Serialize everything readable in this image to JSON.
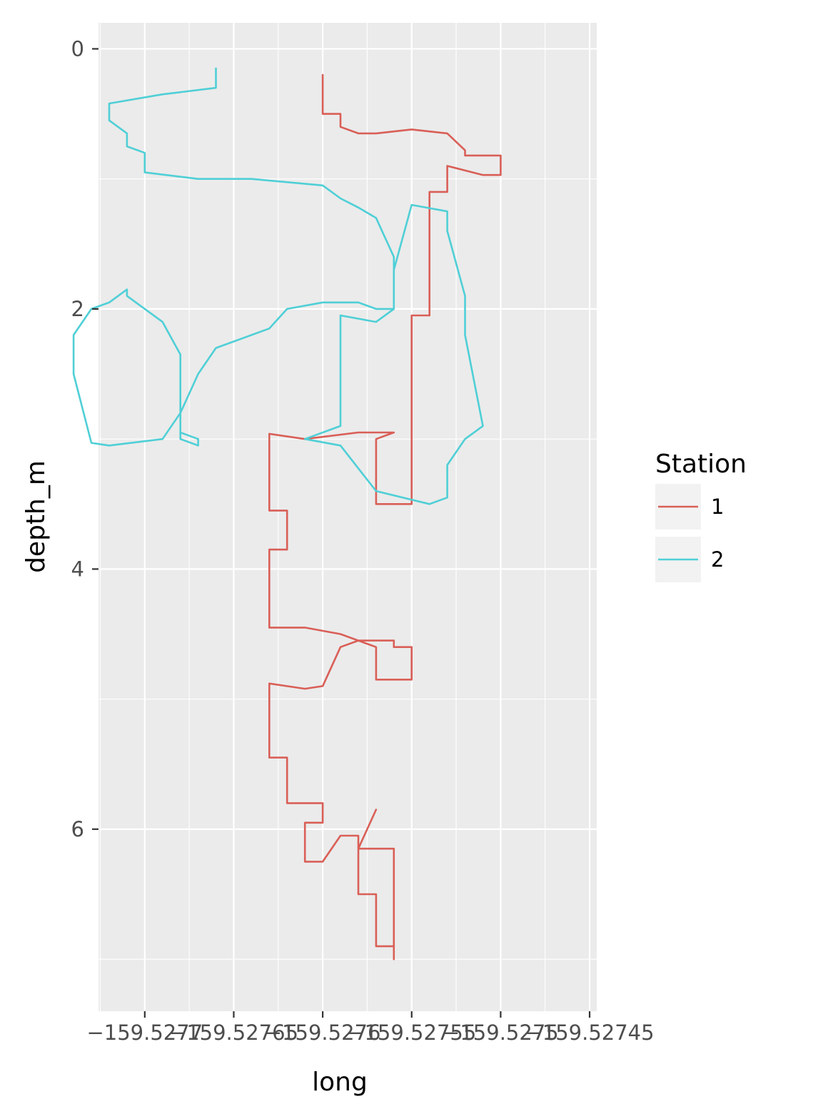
{
  "chart_data": {
    "type": "line",
    "xlabel": "long",
    "ylabel": "depth_m",
    "x_ticks": [
      {
        "value": -159.5277,
        "label": "−159.5277"
      },
      {
        "value": -159.52765,
        "label": "−159.52765"
      },
      {
        "value": -159.5276,
        "label": "−159.5276"
      },
      {
        "value": -159.52755,
        "label": "−159.52755"
      },
      {
        "value": -159.5275,
        "label": "−159.5275"
      },
      {
        "value": -159.52745,
        "label": "−159.52745"
      }
    ],
    "y_ticks": [
      {
        "value": 0,
        "label": "0"
      },
      {
        "value": 2,
        "label": "2"
      },
      {
        "value": 4,
        "label": "4"
      },
      {
        "value": 6,
        "label": "6"
      }
    ],
    "xlim": [
      -159.527726,
      -159.527446
    ],
    "ylim": [
      7.4,
      -0.2
    ],
    "y_reversed": true,
    "grid": true,
    "legend": {
      "title": "Station",
      "position": "right"
    },
    "series": [
      {
        "name": "1",
        "color": "#d95f57",
        "x": [
          -159.5276,
          -159.5276,
          -159.52759,
          -159.52759,
          -159.52758,
          -159.52757,
          -159.52755,
          -159.52753,
          -159.52752,
          -159.52752,
          -159.5275,
          -159.5275,
          -159.52751,
          -159.52753,
          -159.52753,
          -159.52754,
          -159.52754,
          -159.52755,
          -159.52755,
          -159.52755,
          -159.52757,
          -159.52757,
          -159.52756,
          -159.52758,
          -159.52761,
          -159.52763,
          -159.52763,
          -159.52762,
          -159.52762,
          -159.52763,
          -159.52763,
          -159.52761,
          -159.52759,
          -159.52757,
          -159.52757,
          -159.52755,
          -159.52755,
          -159.52756,
          -159.52756,
          -159.52758,
          -159.52759,
          -159.5276,
          -159.52761,
          -159.52763,
          -159.52763,
          -159.52762,
          -159.52762,
          -159.5276,
          -159.5276,
          -159.52761,
          -159.52761,
          -159.5276,
          -159.52759,
          -159.52758,
          -159.52758,
          -159.52757,
          -159.52757,
          -159.52756,
          -159.52756,
          -159.52756,
          -159.52758,
          -159.52757,
          -159.52757
        ],
        "y": [
          0.2,
          0.5,
          0.5,
          0.6,
          0.65,
          0.65,
          0.62,
          0.65,
          0.78,
          0.82,
          0.82,
          0.97,
          0.97,
          0.9,
          1.1,
          1.1,
          2.05,
          2.05,
          2.05,
          3.5,
          3.5,
          3.0,
          2.95,
          2.95,
          3.0,
          2.96,
          3.55,
          3.55,
          3.85,
          3.85,
          4.45,
          4.45,
          4.5,
          4.6,
          4.85,
          4.85,
          4.6,
          4.6,
          4.55,
          4.55,
          4.6,
          4.9,
          4.92,
          4.88,
          5.45,
          5.45,
          5.8,
          5.8,
          5.95,
          5.95,
          6.25,
          6.25,
          6.05,
          6.05,
          6.5,
          6.5,
          6.9,
          6.9,
          7.0,
          6.15,
          6.15,
          5.85,
          5.85
        ]
      },
      {
        "name": "2",
        "color": "#4fcfd6",
        "x": [
          -159.52766,
          -159.52766,
          -159.52769,
          -159.52772,
          -159.52772,
          -159.52771,
          -159.52771,
          -159.5277,
          -159.5277,
          -159.52767,
          -159.52764,
          -159.5276,
          -159.52759,
          -159.52758,
          -159.52757,
          -159.52756,
          -159.52756,
          -159.52757,
          -159.52759,
          -159.52759,
          -159.52761,
          -159.52759,
          -159.52757,
          -159.52754,
          -159.52753,
          -159.52753,
          -159.52752,
          -159.52751,
          -159.52752,
          -159.52752,
          -159.52753,
          -159.52753,
          -159.52755,
          -159.52756,
          -159.52756,
          -159.52757,
          -159.52758,
          -159.5276,
          -159.52762,
          -159.52763,
          -159.52766,
          -159.52767,
          -159.52768,
          -159.52769,
          -159.52772,
          -159.52773,
          -159.52774,
          -159.52774,
          -159.52773,
          -159.52772,
          -159.52771,
          -159.52771,
          -159.52769,
          -159.52768,
          -159.52768,
          -159.52767,
          -159.52767,
          -159.52768,
          -159.52767
        ],
        "y": [
          0.15,
          0.3,
          0.35,
          0.42,
          0.55,
          0.65,
          0.75,
          0.8,
          0.95,
          1.0,
          1.0,
          1.05,
          1.15,
          1.22,
          1.3,
          1.6,
          2.0,
          2.1,
          2.05,
          2.9,
          3.0,
          3.05,
          3.4,
          3.5,
          3.45,
          3.2,
          3.0,
          2.9,
          2.2,
          1.9,
          1.4,
          1.25,
          1.2,
          1.7,
          2.0,
          2.0,
          1.95,
          1.95,
          2.0,
          2.15,
          2.3,
          2.5,
          2.8,
          3.0,
          3.05,
          3.03,
          2.5,
          2.2,
          2.0,
          1.95,
          1.85,
          1.9,
          2.1,
          2.35,
          3.0,
          3.05,
          3.0,
          2.95,
          3.0
        ]
      }
    ]
  }
}
